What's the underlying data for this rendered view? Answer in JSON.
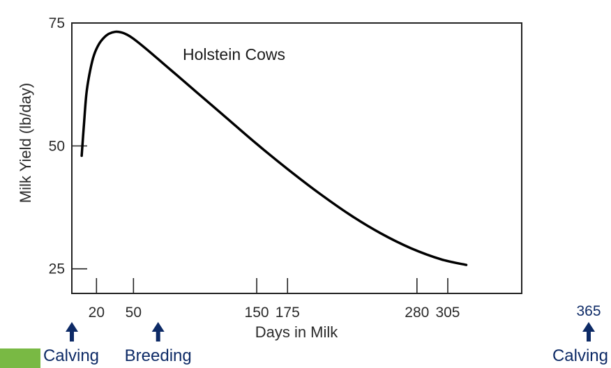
{
  "chart_data": {
    "type": "line",
    "title": "",
    "xlabel": "Days in Milk",
    "ylabel": "Milk Yield (lb/day)",
    "xlim": [
      0,
      365
    ],
    "ylim": [
      20,
      75
    ],
    "x_ticks": [
      20,
      50,
      150,
      175,
      280,
      305
    ],
    "x_tick_labels": [
      "20",
      "50",
      "150",
      "175",
      "280",
      "305"
    ],
    "y_ticks": [
      25,
      50,
      75
    ],
    "y_tick_labels": [
      "25",
      "50",
      "75"
    ],
    "grid": false,
    "series": [
      {
        "name": "Holstein Cows",
        "x": [
          8,
          10,
          12,
          15,
          18,
          22,
          26,
          30,
          35,
          40,
          45,
          50,
          60,
          80,
          100,
          125,
          150,
          175,
          200,
          225,
          250,
          275,
          300,
          320
        ],
        "values": [
          48,
          55,
          61,
          65.5,
          68.5,
          70.7,
          72,
          72.8,
          73.2,
          73.1,
          72.6,
          71.8,
          69.8,
          65.5,
          61.2,
          55.8,
          50.4,
          45.3,
          40.5,
          36.1,
          32.3,
          29.2,
          26.9,
          25.8
        ]
      }
    ],
    "annotations": [
      {
        "text": "Holstein Cows",
        "x": 90,
        "y": 67.5
      },
      {
        "text": "Calving",
        "at_day": 0,
        "tick": ""
      },
      {
        "text": "Breeding",
        "at_day": 70,
        "tick": ""
      },
      {
        "text": "Calving",
        "at_day": 365,
        "tick": "365"
      }
    ]
  },
  "colors": {
    "curve": "#000000",
    "axes": "#222222",
    "event": "#0d2a66",
    "footer_bar": "#79b944"
  },
  "icons": {
    "event_arrow": "arrow-up-icon"
  }
}
